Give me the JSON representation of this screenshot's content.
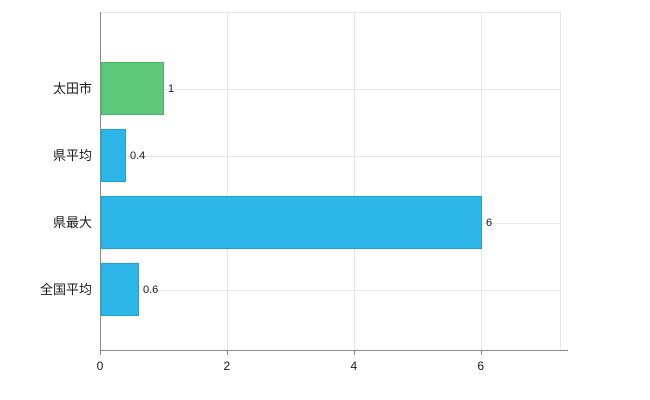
{
  "chart": {
    "title": "",
    "background": "#ffffff"
  },
  "chart_data": {
    "type": "bar",
    "orientation": "horizontal",
    "title": "",
    "xlabel": "",
    "ylabel": "",
    "categories": [
      "太田市",
      "県平均",
      "県最大",
      "全国平均"
    ],
    "values": [
      1,
      0.4,
      6,
      0.6
    ],
    "value_labels": [
      "1",
      "0.4",
      "6",
      "0.6"
    ],
    "bar_colors": [
      "#5ec97b",
      "#2db7e8",
      "#2db7e8",
      "#2db7e8"
    ],
    "bar_border_colors": [
      "#4ab566",
      "#1aa6d4",
      "#1aa6d4",
      "#1aa6d4"
    ],
    "x_ticks": [
      "0",
      "2",
      "4",
      "6"
    ],
    "x_tick_values": [
      0,
      2,
      4,
      6
    ],
    "xlim": [
      0,
      7.25
    ],
    "grid": true,
    "legend": "none"
  },
  "colors": {
    "gridline": "#e7e7e7",
    "axis": "#8a8a8a",
    "text": "#1a1a1a"
  }
}
